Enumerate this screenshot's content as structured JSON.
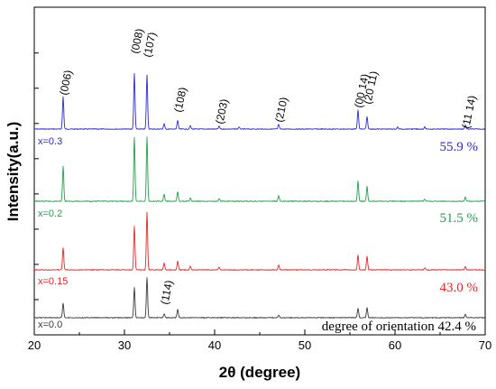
{
  "chart_data": {
    "type": "line",
    "xlabel": "2θ (degree)",
    "ylabel": "Intensity(a.u.)",
    "xlim": [
      20,
      70
    ],
    "xticks": [
      "20",
      "30",
      "40",
      "50",
      "60",
      "70"
    ],
    "grid": false,
    "legend": "none",
    "series": [
      {
        "name": "x=0.3",
        "color": "#2a2ad0",
        "orientation": "55.9 %",
        "peaks": [
          {
            "x": 23.2,
            "h": 0.48
          },
          {
            "x": 31.1,
            "h": 0.82
          },
          {
            "x": 32.5,
            "h": 0.8
          },
          {
            "x": 34.4,
            "h": 0.08
          },
          {
            "x": 35.9,
            "h": 0.13
          },
          {
            "x": 37.3,
            "h": 0.05
          },
          {
            "x": 40.5,
            "h": 0.04
          },
          {
            "x": 42.7,
            "h": 0.03
          },
          {
            "x": 47.1,
            "h": 0.07
          },
          {
            "x": 55.9,
            "h": 0.28
          },
          {
            "x": 56.9,
            "h": 0.18
          },
          {
            "x": 60.3,
            "h": 0.03
          },
          {
            "x": 63.3,
            "h": 0.03
          },
          {
            "x": 67.8,
            "h": 0.06
          }
        ]
      },
      {
        "name": "x=0.2",
        "color": "#1fa04a",
        "orientation": "51.5  %",
        "peaks": [
          {
            "x": 23.2,
            "h": 0.52
          },
          {
            "x": 31.1,
            "h": 0.95
          },
          {
            "x": 32.5,
            "h": 0.95
          },
          {
            "x": 34.4,
            "h": 0.1
          },
          {
            "x": 35.9,
            "h": 0.14
          },
          {
            "x": 37.3,
            "h": 0.05
          },
          {
            "x": 40.5,
            "h": 0.04
          },
          {
            "x": 47.1,
            "h": 0.08
          },
          {
            "x": 55.9,
            "h": 0.3
          },
          {
            "x": 56.9,
            "h": 0.22
          },
          {
            "x": 63.3,
            "h": 0.03
          },
          {
            "x": 67.8,
            "h": 0.06
          }
        ]
      },
      {
        "name": "x=0.15",
        "color": "#e0282a",
        "orientation": "43.0  %",
        "peaks": [
          {
            "x": 23.2,
            "h": 0.33
          },
          {
            "x": 31.1,
            "h": 0.65
          },
          {
            "x": 32.5,
            "h": 0.85
          },
          {
            "x": 34.4,
            "h": 0.1
          },
          {
            "x": 35.9,
            "h": 0.13
          },
          {
            "x": 37.3,
            "h": 0.05
          },
          {
            "x": 40.5,
            "h": 0.04
          },
          {
            "x": 47.1,
            "h": 0.07
          },
          {
            "x": 55.9,
            "h": 0.22
          },
          {
            "x": 56.9,
            "h": 0.2
          },
          {
            "x": 63.3,
            "h": 0.03
          },
          {
            "x": 67.8,
            "h": 0.05
          }
        ]
      },
      {
        "name": "x=0.0",
        "color": "#3a3a3a",
        "orientation": "42.4 %",
        "peaks": [
          {
            "x": 23.2,
            "h": 0.22
          },
          {
            "x": 31.1,
            "h": 0.45
          },
          {
            "x": 32.5,
            "h": 0.6
          },
          {
            "x": 34.4,
            "h": 0.06
          },
          {
            "x": 35.9,
            "h": 0.13
          },
          {
            "x": 47.1,
            "h": 0.04
          },
          {
            "x": 55.9,
            "h": 0.14
          },
          {
            "x": 56.9,
            "h": 0.15
          },
          {
            "x": 67.8,
            "h": 0.05
          }
        ]
      }
    ],
    "peak_labels": [
      {
        "text": "(006)",
        "x": 23.2
      },
      {
        "text": "(008)",
        "x": 31.1
      },
      {
        "text": "(107)",
        "x": 32.5
      },
      {
        "text": "(108)",
        "x": 35.9
      },
      {
        "text": "(203)",
        "x": 40.5
      },
      {
        "text": "(210)",
        "x": 47.1
      },
      {
        "text": "(00 14)",
        "x": 55.9
      },
      {
        "text": "(20 11)",
        "x": 56.9
      },
      {
        "text": "(11 14)",
        "x": 67.8
      },
      {
        "text": "(114)",
        "x": 34.4
      }
    ],
    "orientation_note": "degree of orientation"
  }
}
